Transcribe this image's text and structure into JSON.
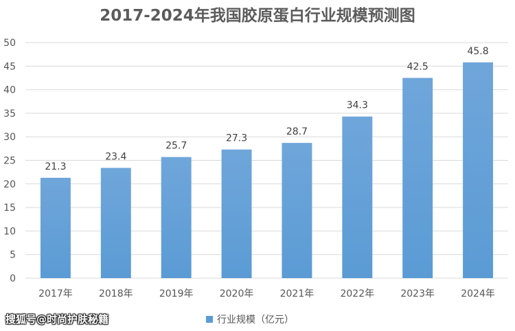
{
  "chart_data": {
    "type": "bar",
    "title": "2017-2024年我国胶原蛋白行业规模预测图",
    "categories": [
      "2017年",
      "2018年",
      "2019年",
      "2020年",
      "2021年",
      "2022年",
      "2023年",
      "2024年"
    ],
    "series": [
      {
        "name": "行业规模（亿元）",
        "values": [
          21.3,
          23.4,
          25.7,
          27.3,
          28.7,
          34.3,
          42.5,
          45.8
        ],
        "color": "#5b9bd5"
      }
    ],
    "value_labels": [
      "21.3",
      "23.4",
      "25.7",
      "27.3",
      "28.7",
      "34.3",
      "42.5",
      "45.8"
    ],
    "y_ticks": [
      "0",
      "5",
      "10",
      "15",
      "20",
      "25",
      "30",
      "35",
      "40",
      "45",
      "50"
    ],
    "ylim": [
      0,
      50
    ],
    "xlabel": "",
    "ylabel": "",
    "grid": true,
    "legend_position": "bottom"
  },
  "legend": {
    "label": "行业规模（亿元）"
  },
  "watermark": {
    "text": "搜狐号@时尚护肤秘籍"
  },
  "colors": {
    "bar": "#5b9bd5",
    "grid": "#d9d9d9"
  }
}
